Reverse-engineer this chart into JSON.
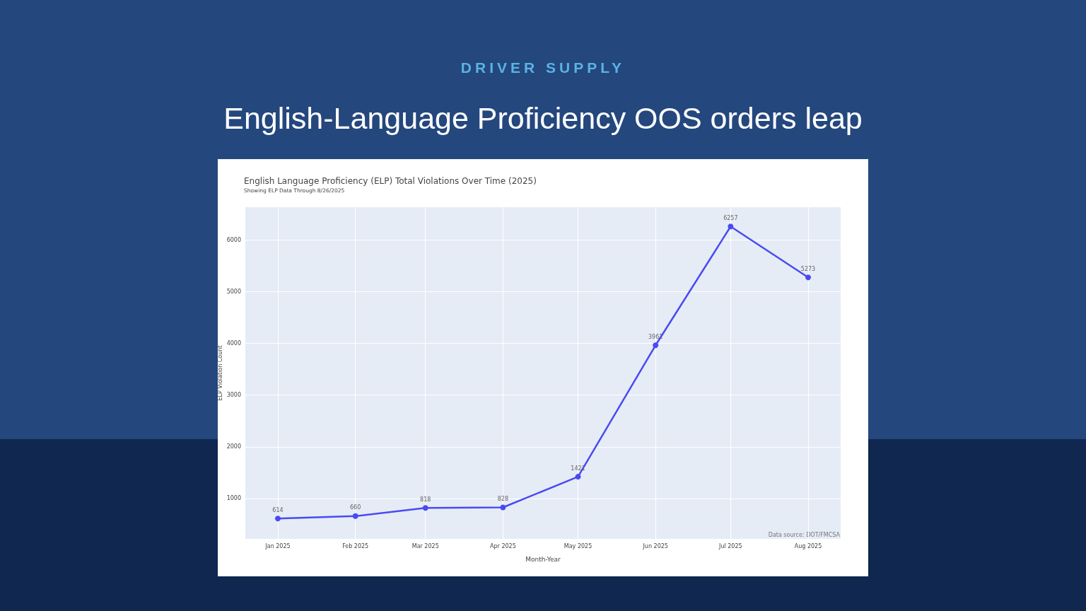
{
  "chart_data": {
    "type": "line",
    "title": "English Language Proficiency (ELP) Total Violations Over Time (2025)",
    "subtitle": "Showing ELP Data Through 8/26/2025",
    "xlabel": "Month-Year",
    "ylabel": "ELP Violation Count",
    "annotations": [
      "DRIVER SUPPLY",
      "English-Language Proficiency OOS orders leap",
      "Data source: DOT/FMCSA"
    ],
    "x": [
      "2025-01",
      "2025-02",
      "2025-03",
      "2025-04",
      "2025-05",
      "2025-06",
      "2025-07",
      "2025-08"
    ],
    "series": [
      {
        "color": "#4a4af2",
        "values": [
          614,
          660,
          818,
          828,
          1421,
          3961,
          6257,
          5273
        ]
      }
    ],
    "xlim": [
      "2024-12-19",
      "2025-08-14"
    ],
    "xticks": [
      {
        "value": "2025-01",
        "label": "Jan 2025"
      },
      {
        "value": "2025-02",
        "label": "Feb 2025"
      },
      {
        "value": "2025-03",
        "label": "Mar 2025"
      },
      {
        "value": "2025-04",
        "label": "Apr 2025"
      },
      {
        "value": "2025-05",
        "label": "May 2025"
      },
      {
        "value": "2025-06",
        "label": "Jun 2025"
      },
      {
        "value": "2025-07",
        "label": "Jul 2025"
      },
      {
        "value": "2025-08",
        "label": "Aug 2025"
      }
    ],
    "ylim": [
      220,
      6630
    ],
    "yticks": [
      1000,
      2000,
      3000,
      4000,
      5000,
      6000
    ],
    "grid": true,
    "marker": "circle",
    "line_style": "solid",
    "data_labels": true
  }
}
